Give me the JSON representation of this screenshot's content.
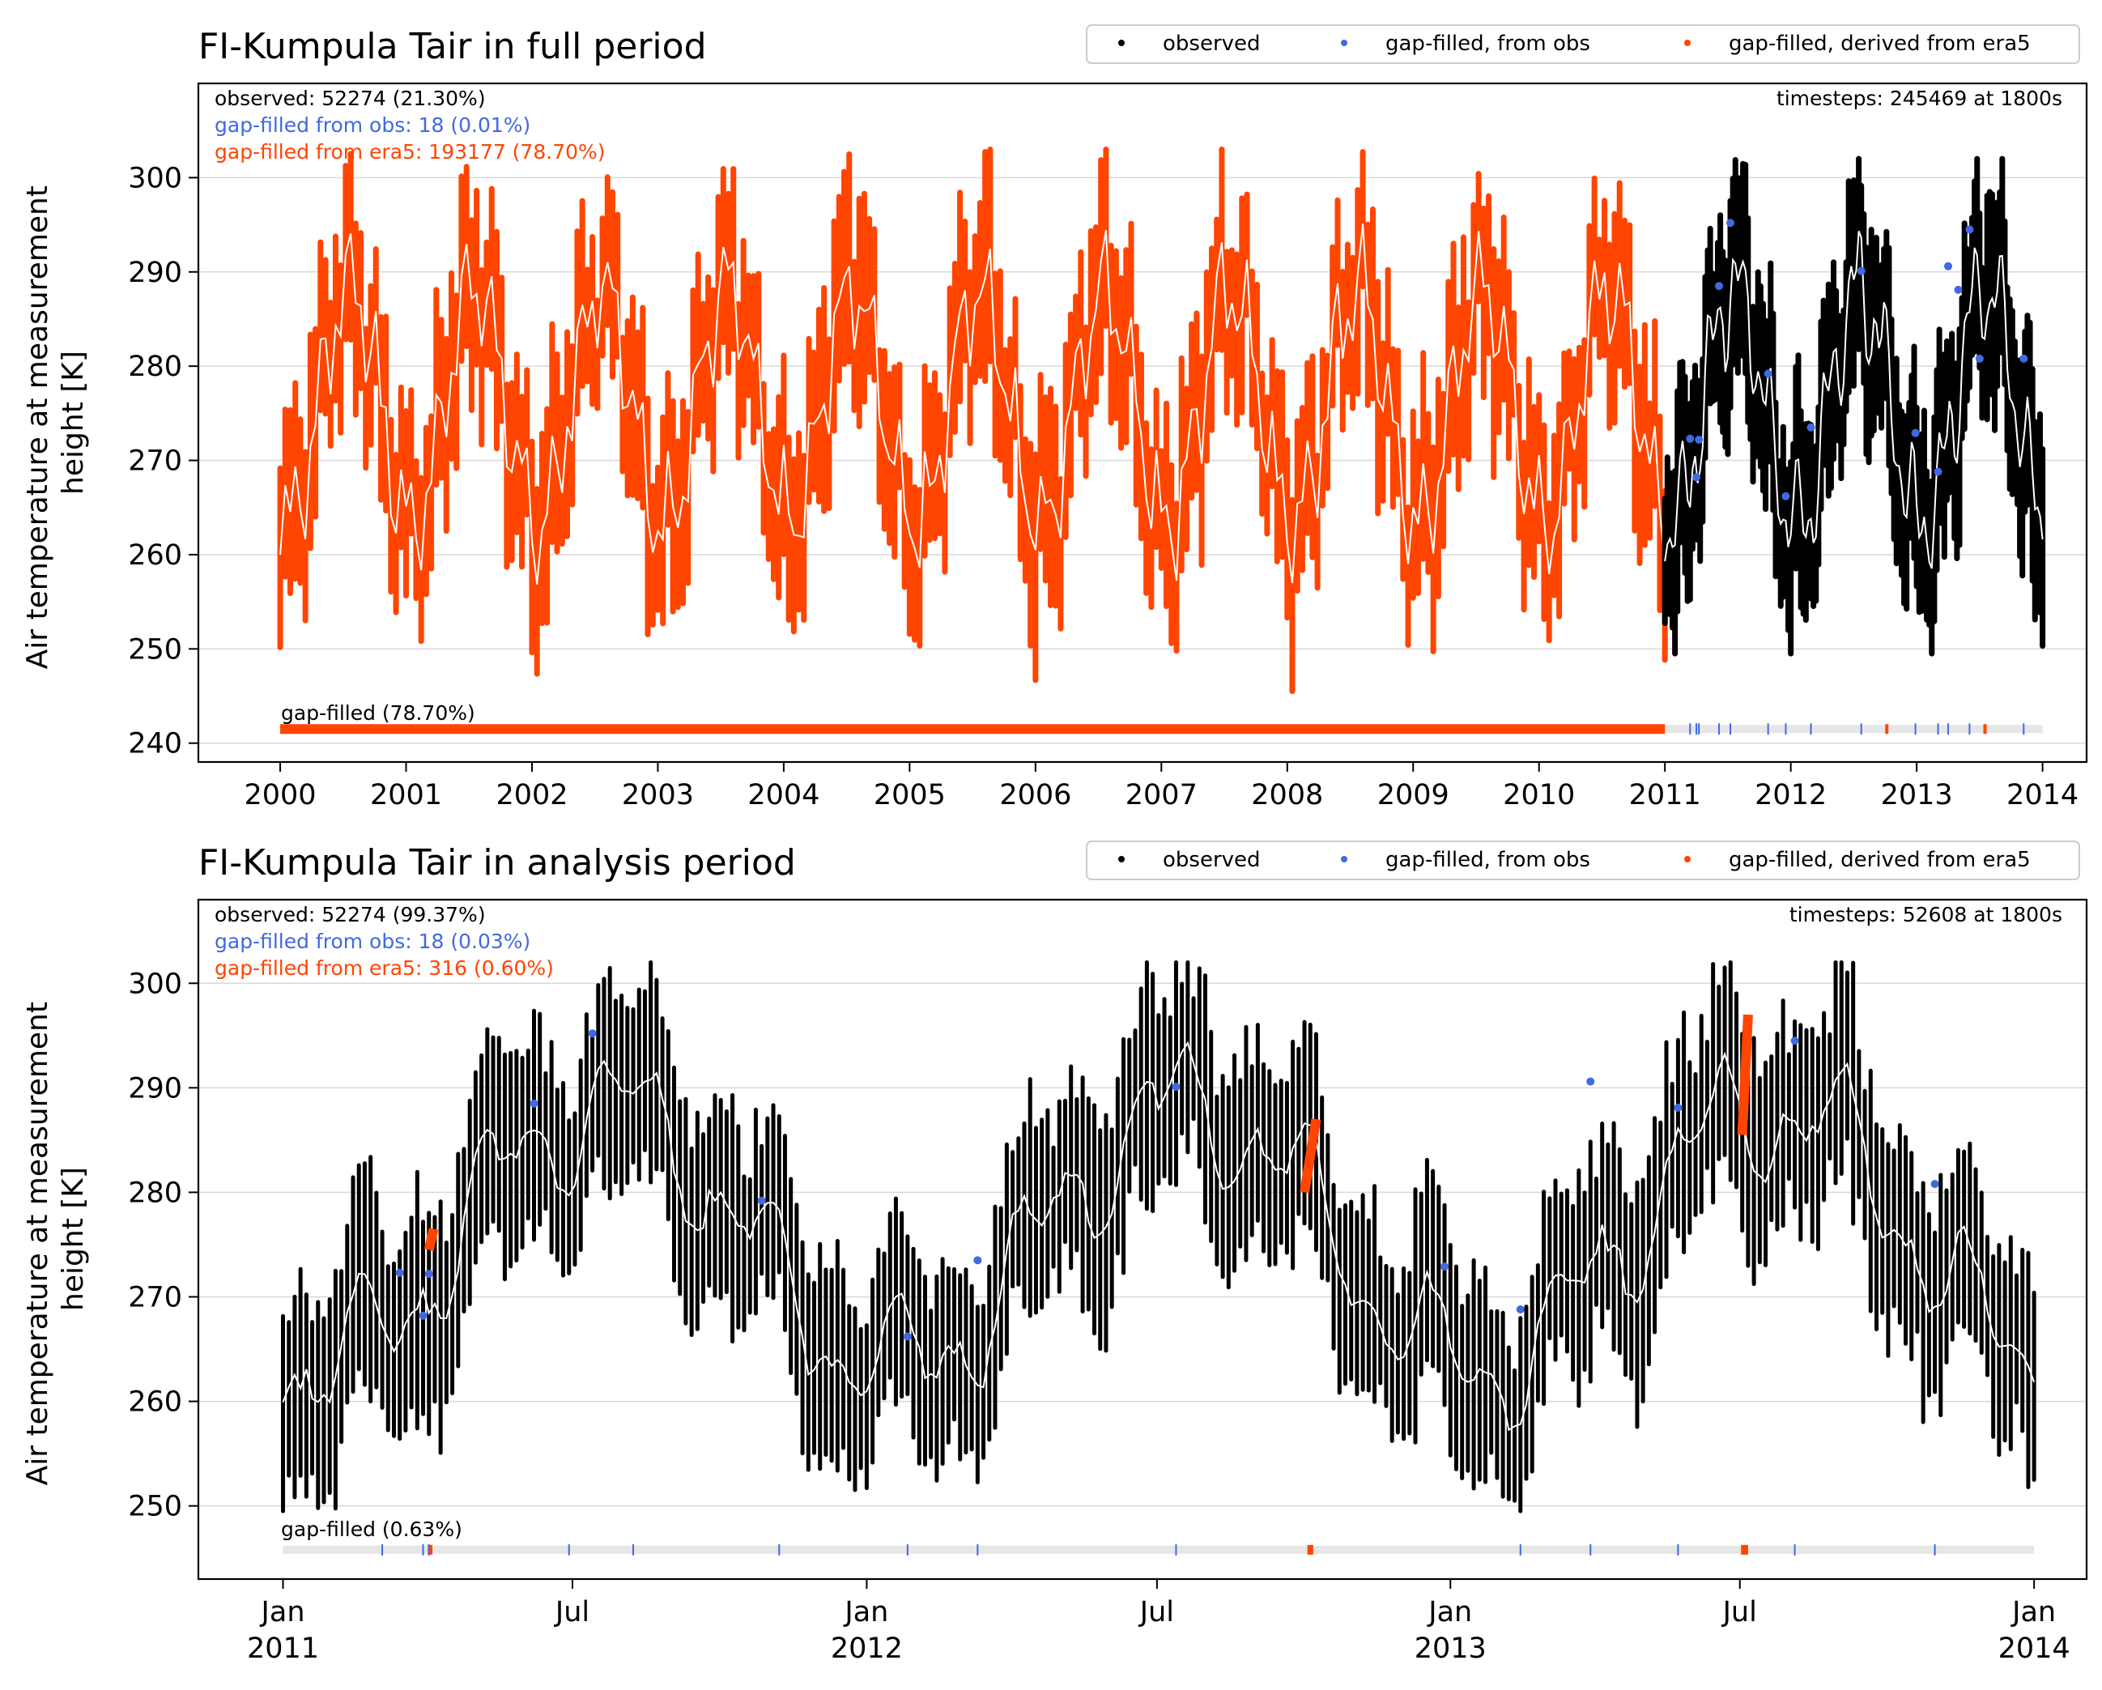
{
  "chart_data": [
    {
      "type": "scatter",
      "title": "FI-Kumpula Tair in full period",
      "xlabel": "",
      "ylabel": "Air temperature at measurement height [K]",
      "ylim": [
        238,
        310
      ],
      "yticks": [
        240,
        250,
        260,
        270,
        280,
        290,
        300
      ],
      "xlim": [
        1999.35,
        2014.35
      ],
      "xticks": [
        "2000",
        "2001",
        "2002",
        "2003",
        "2004",
        "2005",
        "2006",
        "2007",
        "2008",
        "2009",
        "2010",
        "2011",
        "2012",
        "2013",
        "2014"
      ],
      "xtick_values": [
        2000,
        2001,
        2002,
        2003,
        2004,
        2005,
        2006,
        2007,
        2008,
        2009,
        2010,
        2011,
        2012,
        2013,
        2014
      ],
      "grid": "horizontal",
      "legend": {
        "placement": "top-right",
        "entries": [
          "observed",
          "gap-filled, from obs",
          "gap-filled, derived from era5"
        ]
      },
      "annotations": {
        "observed": "observed: 52274 (21.30%)",
        "gap_obs": "gap-filled from obs: 18 (0.01%)",
        "gap_era5": "gap-filled from era5: 193177 (78.70%)",
        "timesteps": "timesteps: 245469 at 1800s",
        "gap_bar_label": "gap-filled (78.70%)"
      },
      "series": [
        {
          "name": "gap-filled, derived from era5",
          "color": "#ff4500",
          "x_range": [
            2000.0,
            2011.0
          ],
          "x_step": 0.04,
          "value_range_approx": [
            245.5,
            303
          ]
        },
        {
          "name": "observed",
          "color": "#000000",
          "x_range": [
            2011.0,
            2014.0
          ],
          "x_step": 0.02,
          "value_range_approx": [
            249.5,
            302
          ]
        },
        {
          "name": "gap-filled, from obs",
          "color": "#4169e1",
          "x": [
            2011.2,
            2011.25,
            2011.27,
            2011.43,
            2011.52,
            2011.82,
            2011.96,
            2012.16,
            2012.56,
            2012.99,
            2013.17,
            2013.25,
            2013.33,
            2013.42,
            2013.5,
            2013.85
          ],
          "y": [
            272.3,
            268.2,
            272.2,
            288.5,
            295.2,
            279.2,
            266.2,
            273.5,
            290.1,
            272.9,
            268.8,
            290.6,
            288.1,
            294.5,
            280.8,
            280.8
          ]
        }
      ],
      "gap_bar": {
        "era5_segments": [
          [
            2000.0,
            2011.0
          ],
          [
            2012.75,
            2012.77
          ],
          [
            2013.53,
            2013.55
          ]
        ],
        "obs_gap_ticks": [
          2011.2,
          2011.25,
          2011.27,
          2011.43,
          2011.52,
          2011.82,
          2011.96,
          2012.16,
          2012.56,
          2012.99,
          2013.17,
          2013.25,
          2013.42,
          2013.85
        ],
        "bar_range": [
          2000.0,
          2014.0
        ]
      }
    },
    {
      "type": "scatter",
      "title": "FI-Kumpula Tair in analysis period",
      "xlabel": "",
      "ylabel": "Air temperature at measurement height [K]",
      "ylim": [
        243,
        308
      ],
      "yticks": [
        250,
        260,
        270,
        280,
        290,
        300
      ],
      "xlim": [
        2010.855,
        2014.09
      ],
      "xticks": [
        "Jan\n2011",
        "Jul",
        "Jan\n2012",
        "Jul",
        "Jan\n2013",
        "Jul",
        "Jan\n2014"
      ],
      "xtick_values": [
        2011.0,
        2011.4959,
        2012.0,
        2012.4973,
        2013.0,
        2013.4959,
        2014.0
      ],
      "grid": "horizontal",
      "legend": {
        "placement": "top-right",
        "entries": [
          "observed",
          "gap-filled, from obs",
          "gap-filled, derived from era5"
        ]
      },
      "annotations": {
        "observed": "observed: 52274 (99.37%)",
        "gap_obs": "gap-filled from obs: 18 (0.03%)",
        "gap_era5": "gap-filled from era5: 316 (0.60%)",
        "timesteps": "timesteps: 52608 at 1800s",
        "gap_bar_label": "gap-filled (0.63%)"
      },
      "series": [
        {
          "name": "observed",
          "color": "#000000",
          "x_range": [
            2011.0,
            2014.0
          ],
          "x_step": 0.01,
          "value_range_approx": [
            249.5,
            302
          ]
        },
        {
          "name": "gap-filled, from obs",
          "color": "#4169e1",
          "x": [
            2011.2,
            2011.24,
            2011.25,
            2011.43,
            2011.53,
            2011.82,
            2012.07,
            2012.19,
            2012.53,
            2012.99,
            2013.12,
            2013.24,
            2013.39,
            2013.59,
            2013.83
          ],
          "y": [
            272.3,
            268.2,
            272.2,
            288.5,
            295.2,
            279.2,
            266.2,
            273.5,
            290.1,
            272.9,
            268.8,
            290.6,
            288.1,
            294.5,
            280.8
          ]
        },
        {
          "name": "gap-filled, derived from era5",
          "color": "#ff4500",
          "segments": [
            {
              "x": [
                2011.25,
                2011.258
              ],
              "y": [
                274.5,
                276.5
              ]
            },
            {
              "x": [
                2012.75,
                2012.77
              ],
              "y": [
                280.0,
                287.0
              ]
            },
            {
              "x": [
                2013.5,
                2013.51
              ],
              "y": [
                285.5,
                297.0
              ]
            }
          ]
        }
      ],
      "gap_bar": {
        "era5_segments": [
          [
            2011.248,
            2011.256
          ],
          [
            2012.755,
            2012.765
          ],
          [
            2013.498,
            2013.51
          ]
        ],
        "obs_gap_ticks": [
          2011.17,
          2011.24,
          2011.25,
          2011.49,
          2011.6,
          2011.85,
          2012.07,
          2012.19,
          2012.53,
          2013.12,
          2013.24,
          2013.39,
          2013.59,
          2013.83
        ],
        "bar_range": [
          2011.0,
          2014.0
        ]
      }
    }
  ]
}
